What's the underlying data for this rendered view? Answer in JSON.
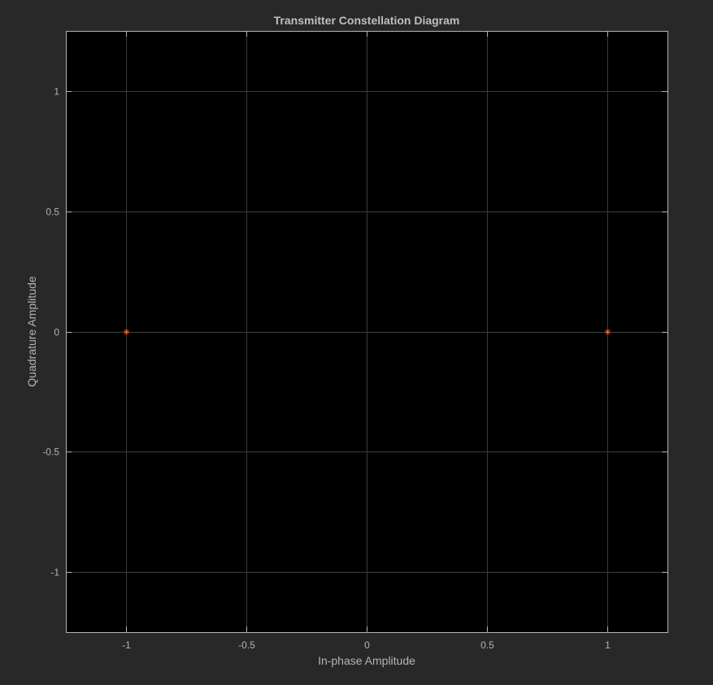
{
  "colors": {
    "figure_background": "#282828",
    "plot_background": "#000000",
    "axis_line": "#b4b4b4",
    "grid": "#3c3c3c",
    "text": "#b4b4b4",
    "title": "#bfbfbf",
    "reference_marker": "#ff2a00",
    "received_marker": "#ffcc00"
  },
  "chart_data": {
    "type": "scatter",
    "title": "Transmitter Constellation Diagram",
    "xlabel": "In-phase Amplitude",
    "ylabel": "Quadrature Amplitude",
    "xlim": [
      -1.25,
      1.25
    ],
    "ylim": [
      -1.25,
      1.25
    ],
    "xticks": [
      -1,
      -0.5,
      0,
      0.5,
      1
    ],
    "yticks": [
      -1,
      -0.5,
      0,
      0.5,
      1
    ],
    "xtick_labels": [
      "-1",
      "-0.5",
      "0",
      "0.5",
      "1"
    ],
    "ytick_labels": [
      "-1",
      "-0.5",
      "0",
      "0.5",
      "1"
    ],
    "grid": true,
    "legend": "none",
    "series": [
      {
        "x": [
          -1,
          1
        ],
        "y": [
          0,
          0
        ],
        "marker": "circle"
      },
      {
        "x": [
          -1,
          1
        ],
        "y": [
          0,
          0
        ],
        "marker": "dot"
      }
    ]
  }
}
